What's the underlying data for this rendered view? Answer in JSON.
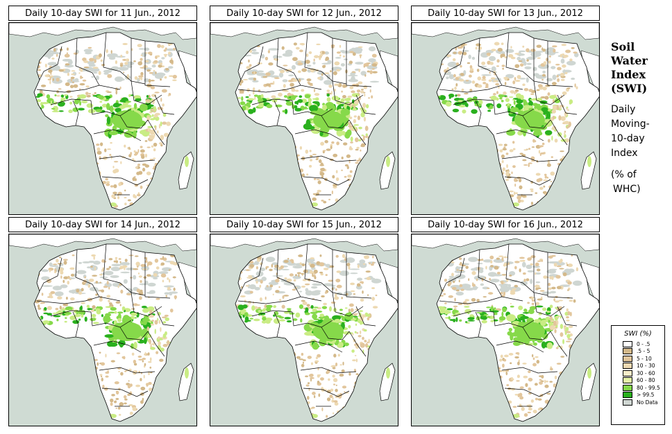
{
  "panels": [
    {
      "title": "Daily 10-day SWI for  11 Jun., 2012",
      "seed": 11
    },
    {
      "title": "Daily 10-day SWI for  12 Jun., 2012",
      "seed": 12
    },
    {
      "title": "Daily 10-day SWI for  13 Jun., 2012",
      "seed": 13
    },
    {
      "title": "Daily 10-day SWI for  14 Jun., 2012",
      "seed": 14
    },
    {
      "title": "Daily 10-day SWI for  15 Jun., 2012",
      "seed": 15
    },
    {
      "title": "Daily 10-day SWI for  16 Jun., 2012",
      "seed": 16
    }
  ],
  "side": {
    "line1": "Soil",
    "line2": "Water",
    "line3": "Index",
    "line4": "(SWI)",
    "line5": "Daily",
    "line6": "Moving-",
    "line7": "10-day",
    "line8": "Index",
    "line9": "(% of",
    "line10": "WHC)"
  },
  "legend": {
    "title": "SWI (%)",
    "items": [
      {
        "label": "0 - .5",
        "color": "#ffffff"
      },
      {
        "label": ".5 - 5",
        "color": "#d4b98a"
      },
      {
        "label": "5 - 10",
        "color": "#e2c69c"
      },
      {
        "label": "10 - 30",
        "color": "#edd9b2"
      },
      {
        "label": "30 - 60",
        "color": "#f6ecc8"
      },
      {
        "label": "60 - 80",
        "color": "#e6f4a8"
      },
      {
        "label": "80 - 99.5",
        "color": "#86d94a"
      },
      {
        "label": "> 99.5",
        "color": "#2ab01e"
      },
      {
        "label": "No Data",
        "color": "#cfd6d2"
      }
    ]
  },
  "colors": {
    "ocean": "#cfdbd3",
    "land": "#ffffff",
    "border": "#000000"
  }
}
